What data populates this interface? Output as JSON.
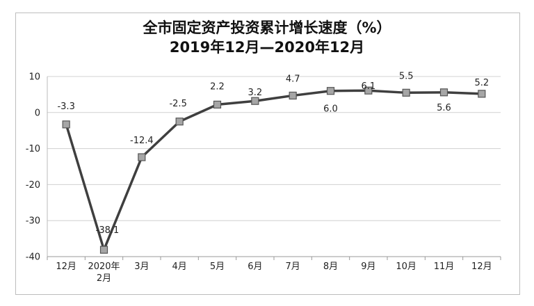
{
  "chart_data": {
    "type": "line",
    "title_line1": "全市固定资产投资累计增长速度（%）",
    "title_line2": "2019年12月—2020年12月",
    "categories": [
      "12月",
      "2020年\n2月",
      "3月",
      "4月",
      "5月",
      "6月",
      "7月",
      "8月",
      "9月",
      "10月",
      "11月",
      "12月"
    ],
    "series": [
      {
        "values": [
          -3.3,
          -38.1,
          -12.4,
          -2.5,
          2.2,
          3.2,
          4.7,
          6.0,
          6.1,
          5.5,
          5.6,
          5.2
        ]
      }
    ],
    "data_labels": [
      "-3.3",
      "-38.1",
      "-12.4",
      "-2.5",
      "2.2",
      "3.2",
      "4.7",
      "6.0",
      "6.1",
      "5.5",
      "5.6",
      "5.2"
    ],
    "ylim": [
      -40,
      10
    ],
    "yticks": [
      10,
      0,
      -10,
      -20,
      -30,
      -40
    ],
    "grid": true,
    "colors": {
      "line": "#3f3f3f",
      "marker_fill": "#a6a6a6",
      "marker_stroke": "#555555",
      "grid": "#d0d0d0"
    }
  }
}
